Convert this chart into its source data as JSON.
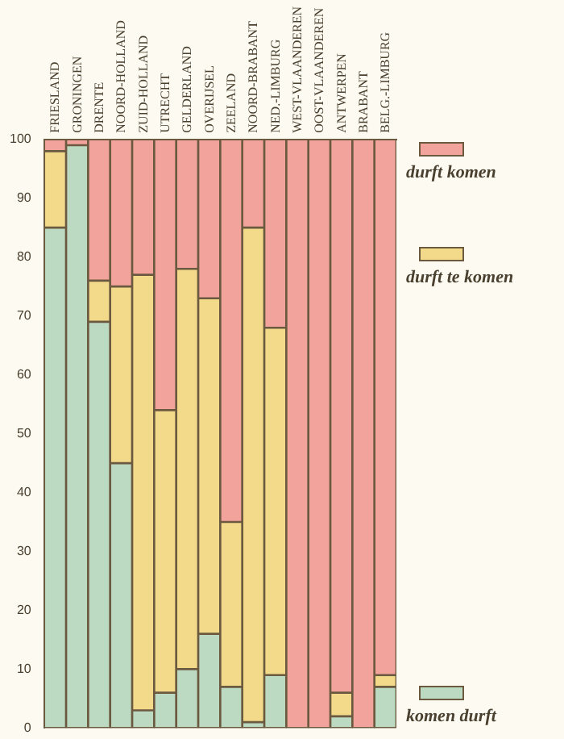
{
  "chart_data": {
    "type": "bar",
    "stacked": true,
    "categories": [
      "FRIESLAND",
      "GRONINGEN",
      "DRENTE",
      "NOORD-HOLLAND",
      "ZUID-HOLLAND",
      "UTRECHT",
      "GELDERLAND",
      "OVERIJSEL",
      "ZEELAND",
      "NOORD-BRABANT",
      "NED.-LIMBURG",
      "WEST-VLAANDEREN",
      "OOST-VLAANDEREN",
      "ANTWERPEN",
      "BRABANT",
      "BELG.-LIMBURG"
    ],
    "series": [
      {
        "name": "komen durft",
        "color": "#bcd9c2",
        "values": [
          85,
          99,
          69,
          45,
          3,
          6,
          10,
          16,
          7,
          1,
          9,
          0,
          0,
          2,
          0,
          7
        ]
      },
      {
        "name": "durft te komen",
        "color": "#f3da8a",
        "values": [
          13,
          0,
          7,
          30,
          74,
          48,
          68,
          57,
          28,
          84,
          59,
          0,
          0,
          4,
          0,
          2
        ]
      },
      {
        "name": "durft komen",
        "color": "#f2a49c",
        "values": [
          2,
          1,
          24,
          25,
          23,
          46,
          22,
          27,
          65,
          15,
          32,
          100,
          100,
          94,
          100,
          91
        ]
      }
    ],
    "ylim": [
      0,
      100
    ],
    "yticks": [
      0,
      10,
      20,
      30,
      40,
      50,
      60,
      70,
      80,
      90,
      100
    ],
    "grid": false,
    "legend": "right"
  }
}
